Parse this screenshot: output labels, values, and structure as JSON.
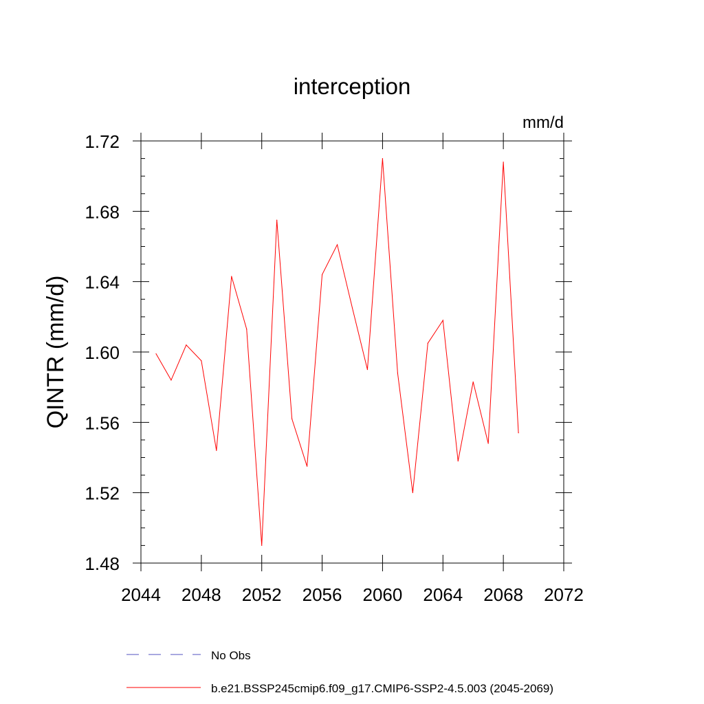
{
  "chart_data": {
    "type": "line",
    "title": "interception",
    "units_label": "mm/d",
    "ylabel": "QINTR  (mm/d)",
    "xlabel": "",
    "xlim": [
      2044,
      2072
    ],
    "ylim": [
      1.48,
      1.72
    ],
    "x_ticks": [
      "2044",
      "2048",
      "2052",
      "2056",
      "2060",
      "2064",
      "2068",
      "2072"
    ],
    "y_ticks": [
      "1.48",
      "1.52",
      "1.56",
      "1.60",
      "1.64",
      "1.68",
      "1.72"
    ],
    "grid": false,
    "legend_position": "bottom",
    "series": [
      {
        "name": "b.e21.BSSP245cmip6.f09_g17.CMIP6-SSP2-4.5.003 (2045-2069)",
        "color": "#ff0000",
        "style": "solid",
        "x": [
          2045,
          2046,
          2047,
          2048,
          2049,
          2050,
          2051,
          2052,
          2053,
          2054,
          2055,
          2056,
          2057,
          2058,
          2059,
          2060,
          2061,
          2062,
          2063,
          2064,
          2065,
          2066,
          2067,
          2068,
          2069
        ],
        "values": [
          1.599,
          1.584,
          1.604,
          1.595,
          1.544,
          1.643,
          1.613,
          1.49,
          1.675,
          1.562,
          1.535,
          1.644,
          1.661,
          1.625,
          1.59,
          1.71,
          1.588,
          1.52,
          1.605,
          1.618,
          1.538,
          1.583,
          1.548,
          1.708,
          1.554
        ]
      },
      {
        "name": "No Obs",
        "color": "#5050c0",
        "style": "dashed",
        "x": [],
        "values": []
      }
    ]
  }
}
